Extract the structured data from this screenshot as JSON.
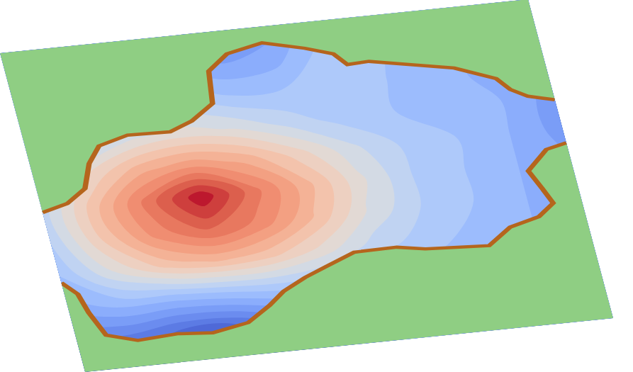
{
  "chart_data": {
    "type": "contour",
    "x": [
      0,
      10,
      20,
      30,
      40,
      50,
      60,
      70,
      80,
      90,
      100
    ],
    "y": [
      0,
      10,
      20,
      30,
      40,
      50,
      60,
      70,
      80,
      90,
      100
    ],
    "values": [
      [
        2,
        1.5,
        0.5,
        0.5,
        2,
        4,
        5,
        5,
        5,
        5,
        5
      ],
      [
        3,
        3,
        2,
        2,
        3.5,
        5,
        6,
        6,
        6,
        6,
        5.5
      ],
      [
        5.5,
        6.5,
        6.5,
        7,
        7.5,
        7.3,
        6.8,
        6.5,
        6.5,
        6,
        5.5
      ],
      [
        7,
        10,
        12.4,
        13.2,
        12.4,
        10.6,
        8.5,
        7.5,
        6.5,
        6,
        5.5
      ],
      [
        8,
        12.2,
        15.5,
        17.2,
        15.6,
        12.9,
        9.9,
        8,
        7,
        6,
        5
      ],
      [
        8.5,
        12.7,
        16.5,
        19.8,
        16.4,
        13.4,
        10.3,
        8,
        7,
        6,
        5
      ],
      [
        7.6,
        11,
        13.6,
        14.6,
        13.6,
        11.5,
        9.3,
        7.8,
        7,
        6,
        4.5
      ],
      [
        6,
        8,
        9.8,
        10.4,
        9.8,
        8.5,
        7.5,
        7,
        7,
        6,
        4.5
      ],
      [
        6,
        7,
        8,
        8,
        7,
        7,
        7.5,
        7,
        6.5,
        5.5,
        5
      ],
      [
        6,
        6,
        6,
        6,
        5,
        5.5,
        7.5,
        7,
        6.5,
        6,
        5
      ],
      [
        6,
        6,
        6,
        6,
        4,
        4.5,
        7,
        7,
        6.5,
        6,
        5
      ]
    ],
    "zlim": [
      0,
      20
    ],
    "shoreline": {
      "x": [
        0,
        5,
        9,
        11,
        13.7,
        19.5,
        27.5,
        32,
        36.7,
        37.6,
        41.8,
        48.8,
        56.4,
        61.4,
        63.5,
        67.6,
        75.2,
        83,
        90.2,
        92.3,
        95.2,
        100,
        100,
        96,
        91.6,
        93.3,
        94.6,
        91.3,
        85.5,
        80.7,
        68.8,
        63.6,
        55.5,
        49.6,
        45.2,
        40.6,
        37.3,
        32.5,
        25.5,
        18.9,
        11.3,
        5.7,
        3.6,
        2.5,
        0
      ],
      "y": [
        50,
        52,
        56,
        63.5,
        68.6,
        71,
        70.7,
        73.3,
        78,
        88,
        92.7,
        95,
        92,
        89.4,
        85.7,
        86,
        83.7,
        81.3,
        76.8,
        73,
        70.4,
        68.5,
        55,
        53.6,
        47.6,
        41.8,
        37,
        33.3,
        31,
        26,
        27,
        28.4,
        28.2,
        24.7,
        22,
        18.5,
        14.6,
        10,
        8,
        8.8,
        8,
        10.6,
        18,
        24,
        28
      ]
    },
    "xlim": [
      0,
      100
    ],
    "ylim": [
      0,
      100
    ],
    "tick_labels": false
  }
}
